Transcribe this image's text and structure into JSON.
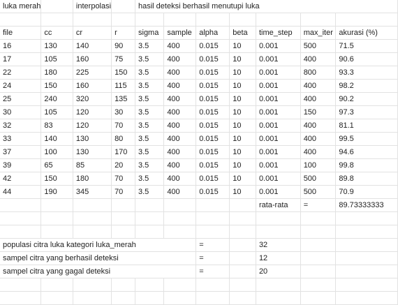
{
  "sheet": {
    "rows": [
      [
        "luka merah",
        "",
        "interpolasi",
        "",
        "hasil deteksi berhasil menutupi luka",
        "",
        "",
        "",
        "",
        "",
        ""
      ],
      [
        "",
        "",
        "",
        "",
        "",
        "",
        "",
        "",
        "",
        "",
        ""
      ],
      [
        "file",
        "cc",
        "cr",
        "r",
        "sigma",
        "sample",
        "alpha",
        "beta",
        "time_step",
        "max_iter",
        "akurasi (%)"
      ],
      [
        "16",
        "130",
        "140",
        "90",
        "3.5",
        "400",
        "0.015",
        "10",
        "0.001",
        "500",
        "71.5"
      ],
      [
        "17",
        "105",
        "160",
        "75",
        "3.5",
        "400",
        "0.015",
        "10",
        "0.001",
        "400",
        "90.6"
      ],
      [
        "22",
        "180",
        "225",
        "150",
        "3.5",
        "400",
        "0.015",
        "10",
        "0.001",
        "800",
        "93.3"
      ],
      [
        "24",
        "150",
        "160",
        "115",
        "3.5",
        "400",
        "0.015",
        "10",
        "0.001",
        "400",
        "98.2"
      ],
      [
        "25",
        "240",
        "320",
        "135",
        "3.5",
        "400",
        "0.015",
        "10",
        "0.001",
        "400",
        "90.2"
      ],
      [
        "30",
        "105",
        "120",
        "30",
        "3.5",
        "400",
        "0.015",
        "10",
        "0.001",
        "150",
        "97.3"
      ],
      [
        "32",
        "83",
        "120",
        "70",
        "3.5",
        "400",
        "0.015",
        "10",
        "0.001",
        "400",
        "81.1"
      ],
      [
        "33",
        "140",
        "130",
        "80",
        "3.5",
        "400",
        "0.015",
        "10",
        "0.001",
        "400",
        "99.5"
      ],
      [
        "37",
        "100",
        "130",
        "170",
        "3.5",
        "400",
        "0.015",
        "10",
        "0.001",
        "400",
        "94.6"
      ],
      [
        "39",
        "65",
        "85",
        "20",
        "3.5",
        "400",
        "0.015",
        "10",
        "0.001",
        "100",
        "99.8"
      ],
      [
        "42",
        "150",
        "180",
        "70",
        "3.5",
        "400",
        "0.015",
        "10",
        "0.001",
        "500",
        "89.8"
      ],
      [
        "44",
        "190",
        "345",
        "70",
        "3.5",
        "400",
        "0.015",
        "10",
        "0.001",
        "500",
        "70.9"
      ],
      [
        "",
        "",
        "",
        "",
        "",
        "",
        "",
        "",
        "rata-rata",
        "=",
        "89.73333333"
      ],
      [
        "",
        "",
        "",
        "",
        "",
        "",
        "",
        "",
        "",
        "",
        ""
      ],
      [
        "",
        "",
        "",
        "",
        "",
        "",
        "",
        "",
        "",
        "",
        ""
      ],
      [
        "populasi citra luka kategori luka_merah",
        "",
        "",
        "",
        "",
        "",
        "=",
        "",
        "32",
        "",
        ""
      ],
      [
        "sampel citra yang berhasil deteksi",
        "",
        "",
        "",
        "",
        "",
        "=",
        "",
        "12",
        "",
        ""
      ],
      [
        "sampel citra yang gagal deteksi",
        "",
        "",
        "",
        "",
        "",
        "=",
        "",
        "20",
        "",
        ""
      ],
      [
        "",
        "",
        "",
        "",
        "",
        "",
        "",
        "",
        "",
        "",
        ""
      ],
      [
        "",
        "",
        "",
        "",
        "",
        "",
        "",
        "",
        "",
        "",
        ""
      ]
    ]
  }
}
